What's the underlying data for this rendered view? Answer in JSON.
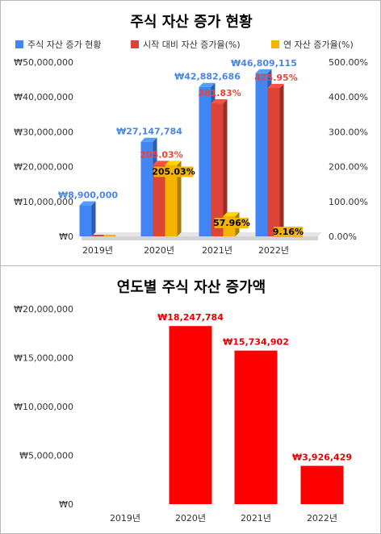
{
  "chart_data": [
    {
      "type": "bar",
      "title": "주식 자산 증가 현황",
      "categories": [
        "2019년",
        "2020년",
        "2021년",
        "2022년"
      ],
      "legend_position": "top",
      "series": [
        {
          "name": "주식 자산 증가 현황",
          "axis": "left",
          "color": "#4285f4",
          "values": [
            8900000,
            27147784,
            42882686,
            46809115
          ],
          "labels": [
            "₩8,900,000",
            "₩27,147,784",
            "₩42,882,686",
            "₩46,809,115"
          ]
        },
        {
          "name": "시작 대비 자산 증가율(%)",
          "axis": "right",
          "color": "#db4437",
          "values": [
            0,
            205.03,
            381.83,
            425.95
          ],
          "labels": [
            "",
            "205.03%",
            "381.83%",
            "425.95%"
          ]
        },
        {
          "name": "연 자산 증가율(%)",
          "axis": "right",
          "color": "#f4b400",
          "values": [
            0,
            205.03,
            57.96,
            9.16
          ],
          "labels": [
            "",
            "205.03%",
            "57.96%",
            "9.16%"
          ]
        }
      ],
      "y_left": {
        "min": 0,
        "max": 50000000,
        "ticks": [
          0,
          10000000,
          20000000,
          30000000,
          40000000,
          50000000
        ],
        "tick_labels": [
          "₩0",
          "₩10,000,000",
          "₩20,000,000",
          "₩30,000,000",
          "₩40,000,000",
          "₩50,000,000"
        ]
      },
      "y_right": {
        "min": 0,
        "max": 500,
        "ticks": [
          0,
          100,
          200,
          300,
          400,
          500
        ],
        "tick_labels": [
          "0.00%",
          "100.00%",
          "200.00%",
          "300.00%",
          "400.00%",
          "500.00%"
        ]
      },
      "grid": false
    },
    {
      "type": "bar",
      "title": "연도별 주식 자산 증가액",
      "categories": [
        "2019년",
        "2020년",
        "2021년",
        "2022년"
      ],
      "series": [
        {
          "name": "",
          "color": "#ff0000",
          "values": [
            0,
            18247784,
            15734902,
            3926429
          ],
          "labels": [
            "",
            "₩18,247,784",
            "₩15,734,902",
            "₩3,926,429"
          ]
        }
      ],
      "ylim": [
        0,
        20000000
      ],
      "ticks": [
        0,
        5000000,
        10000000,
        15000000,
        20000000
      ],
      "tick_labels": [
        "₩0",
        "₩5,000,000",
        "₩10,000,000",
        "₩15,000,000",
        "₩20,000,000"
      ],
      "grid": false
    }
  ]
}
